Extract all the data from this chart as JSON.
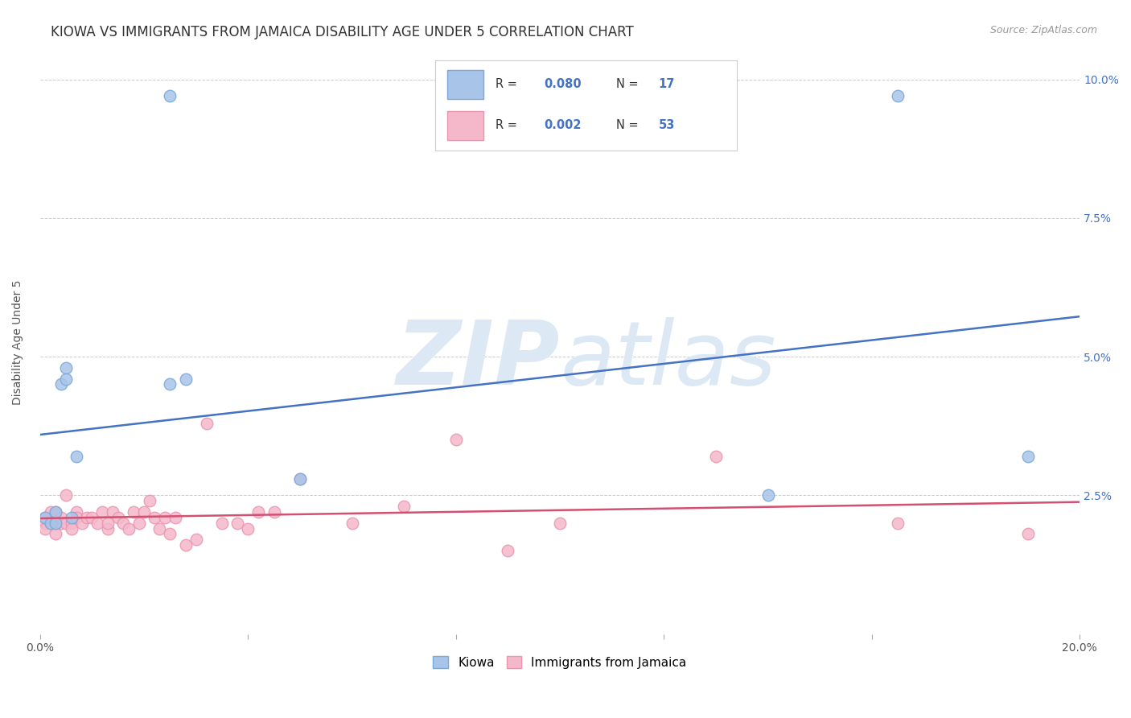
{
  "title": "KIOWA VS IMMIGRANTS FROM JAMAICA DISABILITY AGE UNDER 5 CORRELATION CHART",
  "source": "Source: ZipAtlas.com",
  "ylabel": "Disability Age Under 5",
  "xlim": [
    0.0,
    0.2
  ],
  "ylim": [
    0.0,
    0.105
  ],
  "ytick_positions": [
    0.0,
    0.025,
    0.05,
    0.075,
    0.1
  ],
  "ytick_labels": [
    "",
    "2.5%",
    "5.0%",
    "7.5%",
    "10.0%"
  ],
  "xtick_positions": [
    0.0,
    0.04,
    0.08,
    0.12,
    0.16,
    0.2
  ],
  "xtick_labels": [
    "0.0%",
    "",
    "",
    "",
    "",
    "20.0%"
  ],
  "kiowa_color": "#a8c4e8",
  "jamaica_color": "#f5b8cb",
  "kiowa_edge": "#7aa8d8",
  "jamaica_edge": "#e896b0",
  "trendline_kiowa_color": "#4472c4",
  "trendline_jamaica_color": "#d45070",
  "background_color": "#ffffff",
  "watermark_color": "#dce9f5",
  "grid_color": "#cccccc",
  "right_tick_color": "#4472c4",
  "title_color": "#333333",
  "source_color": "#999999",
  "ylabel_color": "#555555",
  "xtick_color": "#555555",
  "kiowa_x": [
    0.001,
    0.002,
    0.003,
    0.003,
    0.004,
    0.005,
    0.005,
    0.006,
    0.007,
    0.025,
    0.025,
    0.028,
    0.05,
    0.14,
    0.165,
    0.19
  ],
  "kiowa_y": [
    0.021,
    0.02,
    0.02,
    0.022,
    0.045,
    0.048,
    0.046,
    0.021,
    0.032,
    0.045,
    0.097,
    0.046,
    0.028,
    0.025,
    0.097,
    0.032
  ],
  "jamaica_x": [
    0.001,
    0.001,
    0.001,
    0.002,
    0.002,
    0.003,
    0.003,
    0.003,
    0.004,
    0.004,
    0.005,
    0.005,
    0.006,
    0.006,
    0.007,
    0.007,
    0.008,
    0.009,
    0.01,
    0.011,
    0.012,
    0.013,
    0.013,
    0.014,
    0.015,
    0.016,
    0.017,
    0.018,
    0.019,
    0.02,
    0.021,
    0.022,
    0.023,
    0.024,
    0.025,
    0.026,
    0.028,
    0.03,
    0.032,
    0.035,
    0.038,
    0.04,
    0.042,
    0.045,
    0.05,
    0.06,
    0.07,
    0.08,
    0.09,
    0.1,
    0.13,
    0.165,
    0.19
  ],
  "jamaica_y": [
    0.02,
    0.019,
    0.021,
    0.02,
    0.022,
    0.02,
    0.018,
    0.022,
    0.02,
    0.021,
    0.025,
    0.02,
    0.02,
    0.019,
    0.022,
    0.021,
    0.02,
    0.021,
    0.021,
    0.02,
    0.022,
    0.019,
    0.02,
    0.022,
    0.021,
    0.02,
    0.019,
    0.022,
    0.02,
    0.022,
    0.024,
    0.021,
    0.019,
    0.021,
    0.018,
    0.021,
    0.016,
    0.017,
    0.038,
    0.02,
    0.02,
    0.019,
    0.022,
    0.022,
    0.028,
    0.02,
    0.023,
    0.035,
    0.015,
    0.02,
    0.032,
    0.02,
    0.018
  ],
  "title_fontsize": 12,
  "source_fontsize": 9,
  "axis_fontsize": 10,
  "tick_fontsize": 10,
  "legend_fontsize": 11
}
